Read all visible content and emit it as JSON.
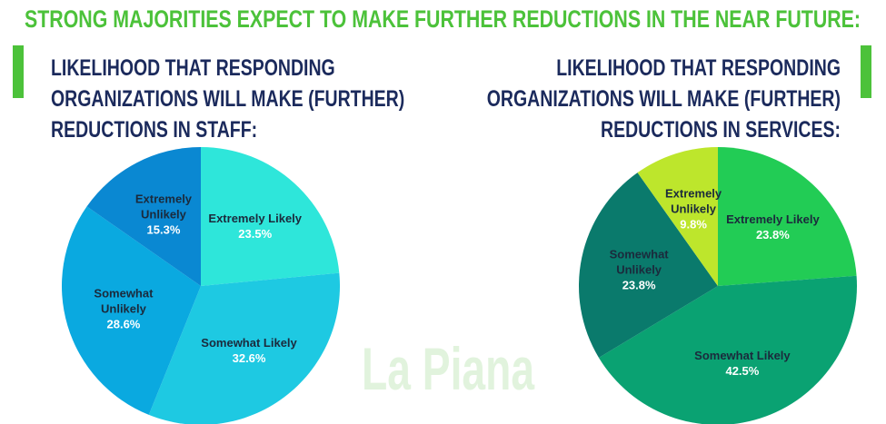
{
  "title": "STRONG MAJORITIES EXPECT TO MAKE FURTHER REDUCTIONS IN THE NEAR FUTURE:",
  "watermark": "La Piana",
  "chart_data": [
    {
      "type": "pie",
      "title": "LIKELIHOOD THAT  RESPONDING ORGANIZATIONS WILL MAKE (FURTHER) REDUCTIONS IN STAFF:",
      "categories": [
        "Extremely Likely",
        "Somewhat Likely",
        "Somewhat Unlikely",
        "Extremely Unlikely"
      ],
      "values": [
        23.5,
        32.6,
        28.6,
        15.3
      ],
      "value_labels": [
        "23.5%",
        "32.6%",
        "28.6%",
        "15.3%"
      ],
      "colors": [
        "#2ee6da",
        "#1ec9e2",
        "#0aa9e0",
        "#0a88d2"
      ]
    },
    {
      "type": "pie",
      "title": "LIKELIHOOD THAT  RESPONDING ORGANIZATIONS WILL MAKE (FURTHER) REDUCTIONS IN SERVICES:",
      "categories": [
        "Extremely Likely",
        "Somewhat Likely",
        "Somewhat Unlikely",
        "Extremely Unlikely"
      ],
      "values": [
        23.8,
        42.5,
        23.8,
        9.8
      ],
      "value_labels": [
        "23.8%",
        "42.5%",
        "23.8%",
        "9.8%"
      ],
      "colors": [
        "#22cc55",
        "#0aa272",
        "#0a7a6c",
        "#bde62c"
      ]
    }
  ]
}
